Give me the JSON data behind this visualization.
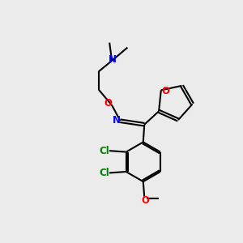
{
  "background_color": "#ebebeb",
  "bond_color": "#000000",
  "N_color": "#0000ff",
  "O_color": "#ff0000",
  "Cl_color": "#008000",
  "line_width": 1.5,
  "font_size": 8.5,
  "xlim": [
    0,
    10
  ],
  "ylim": [
    0,
    10
  ]
}
